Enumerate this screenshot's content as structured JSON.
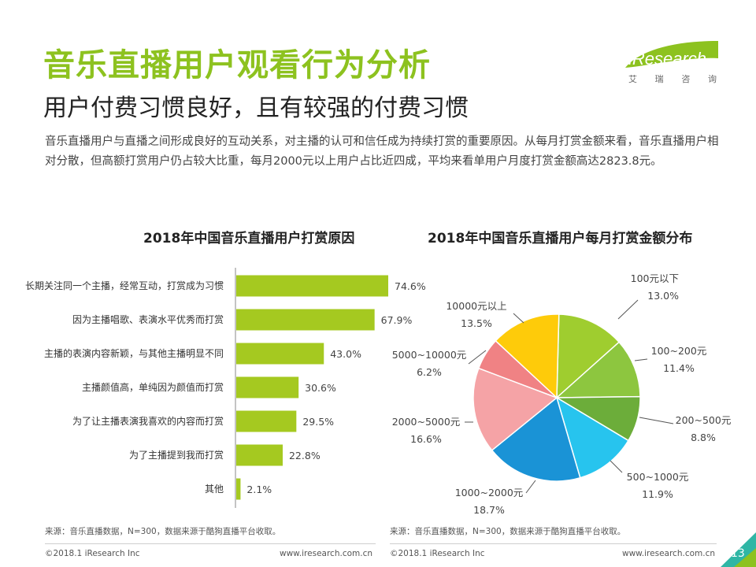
{
  "header": {
    "title": "音乐直播用户观看行为分析",
    "subtitle": "用户付费习惯良好，且有较强的付费习惯",
    "description": "音乐直播用户与直播之间形成良好的互动关系，对主播的认可和信任成为持续打赏的重要原因。从每月打赏金额来看，音乐直播用户相对分散，但高额打赏用户仍占较大比重，每月2000元以上用户占比近四成，平均来看单用户月度打赏金额高达2823.8元。"
  },
  "logo": {
    "text": "iResearch",
    "cn": [
      "艾",
      "瑞",
      "咨",
      "询"
    ]
  },
  "colors": {
    "brand_green": "#8dc21f",
    "bar": "#a5c920",
    "footer_accent": "#2fb6a5"
  },
  "chart_data": [
    {
      "type": "bar",
      "orientation": "horizontal",
      "title": "2018年中国音乐直播用户打赏原因",
      "categories": [
        "长期关注同一个主播，经常互动，打赏成为习惯",
        "因为主播唱歌、表演水平优秀而打赏",
        "主播的表演内容新颖，与其他主播明显不同",
        "主播颜值高，单纯因为颜值而打赏",
        "为了让主播表演我喜欢的内容而打赏",
        "为了主播提到我而打赏",
        "其他"
      ],
      "values": [
        74.6,
        67.9,
        43.0,
        30.6,
        29.5,
        22.8,
        2.1
      ],
      "value_labels": [
        "74.6%",
        "67.9%",
        "43.0%",
        "30.6%",
        "29.5%",
        "22.8%",
        "2.1%"
      ],
      "unit": "%",
      "xlim": [
        0,
        80
      ],
      "source": "来源：音乐直播数据，N=300，数据来源于酷狗直播平台收取。"
    },
    {
      "type": "pie",
      "title": "2018年中国音乐直播用户每月打赏金额分布",
      "slices": [
        {
          "label": "100元以下",
          "value": 13.0,
          "value_label": "13.0%",
          "color": "#9fcd2f"
        },
        {
          "label": "100~200元",
          "value": 11.4,
          "value_label": "11.4%",
          "color": "#8dc63f"
        },
        {
          "label": "200~500元",
          "value": 8.8,
          "value_label": "8.8%",
          "color": "#6cad3a"
        },
        {
          "label": "500~1000元",
          "value": 11.9,
          "value_label": "11.9%",
          "color": "#27c4ee"
        },
        {
          "label": "1000~2000元",
          "value": 18.7,
          "value_label": "18.7%",
          "color": "#1a93d6"
        },
        {
          "label": "2000~5000元",
          "value": 16.6,
          "value_label": "16.6%",
          "color": "#f5a3a6"
        },
        {
          "label": "5000~10000元",
          "value": 6.2,
          "value_label": "6.2%",
          "color": "#f08284"
        },
        {
          "label": "10000元以上",
          "value": 13.5,
          "value_label": "13.5%",
          "color": "#fecb0a"
        }
      ],
      "source": "来源：音乐直播数据，N=300，数据来源于酷狗直播平台收取。"
    }
  ],
  "footer": {
    "copyright": "©2018.1 iResearch Inc",
    "website": "www.iresearch.com.cn",
    "page_number": "13"
  }
}
